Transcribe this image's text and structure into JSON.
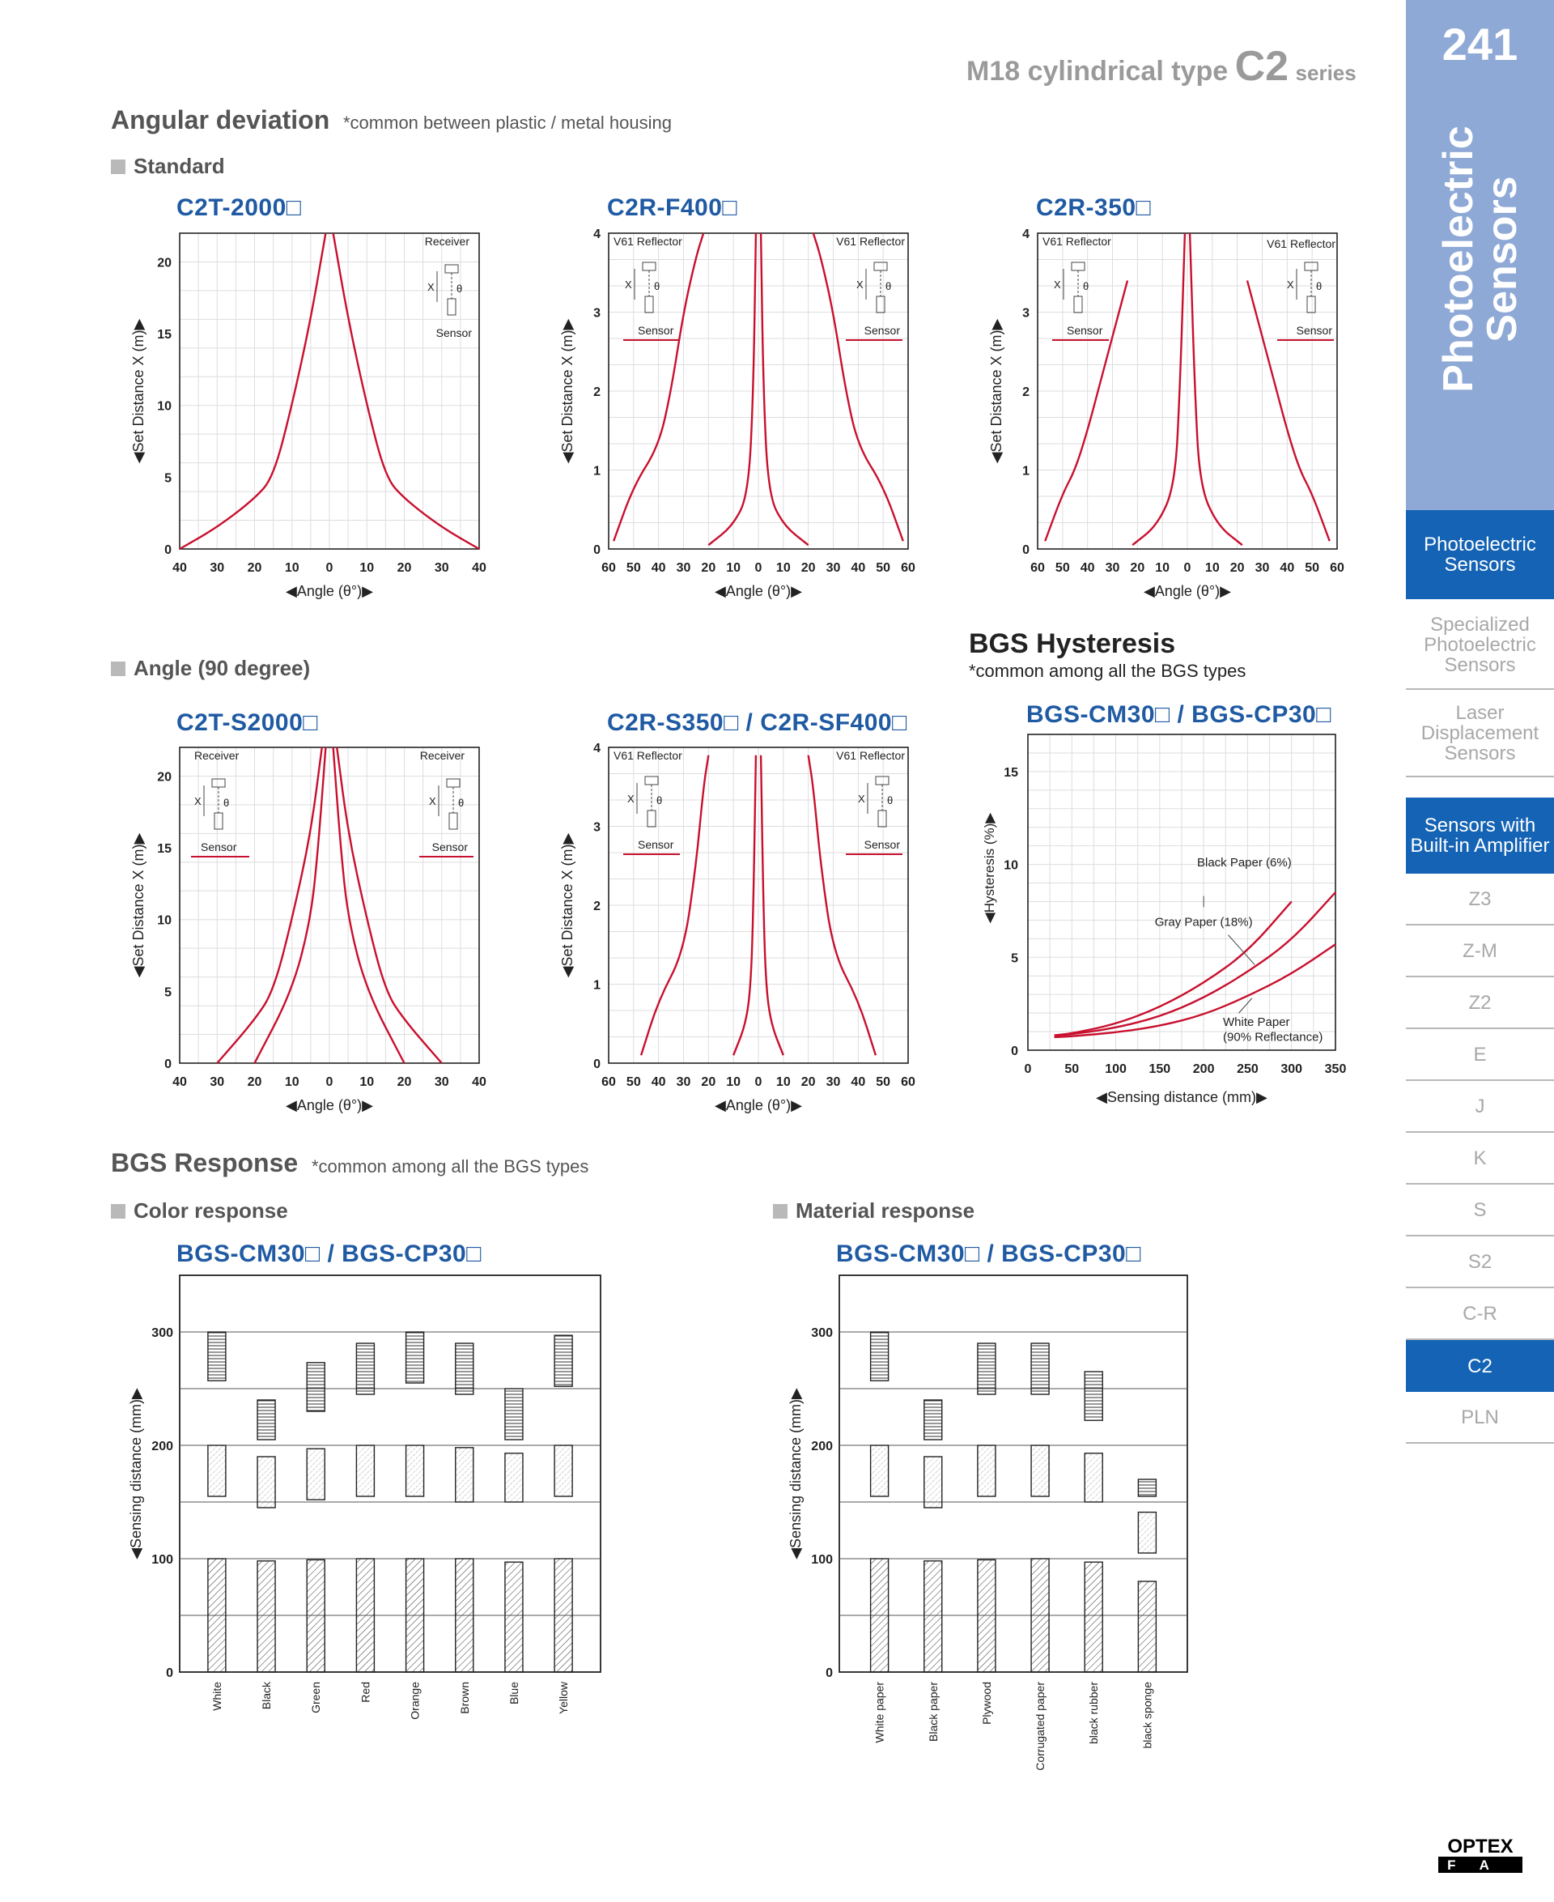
{
  "header": {
    "series_part1": "M18 cylindrical type",
    "series_part2": "C2",
    "series_part3": "series"
  },
  "angular": {
    "title": "Angular deviation",
    "note": "*common between plastic / metal housing",
    "standard_label": "Standard",
    "angle90_label": "Angle (90 degree)"
  },
  "charts": {
    "c2t2000": {
      "model": "C2T-2000□",
      "ylabel": "◀Set Distance X (m)▶",
      "xlabel": "◀Angle (θ°)▶",
      "yticks": [
        "0",
        "5",
        "10",
        "15",
        "20"
      ],
      "xticks": [
        "40",
        "30",
        "20",
        "10",
        "0",
        "10",
        "20",
        "30",
        "40"
      ],
      "inset_top": "Receiver",
      "inset_bottom": "Sensor"
    },
    "c2rf400": {
      "model": "C2R-F400□",
      "ylabel": "◀Set Distance X (m)▶",
      "xlabel": "◀Angle (θ°)▶",
      "yticks": [
        "0",
        "1",
        "2",
        "3",
        "4"
      ],
      "xticks": [
        "60",
        "50",
        "40",
        "30",
        "20",
        "10",
        "0",
        "10",
        "20",
        "30",
        "40",
        "50",
        "60"
      ],
      "reflector_left": "V61 Reflector",
      "reflector_right": "V61 Reflector",
      "sensor_left": "Sensor",
      "sensor_right": "Sensor"
    },
    "c2r350": {
      "model": "C2R-350□",
      "ylabel": "◀Set Distance X (m)▶",
      "xlabel": "◀Angle (θ°)▶",
      "yticks": [
        "0",
        "1",
        "2",
        "3",
        "4"
      ],
      "xticks": [
        "60",
        "50",
        "40",
        "30",
        "20",
        "10",
        "0",
        "10",
        "20",
        "30",
        "40",
        "50",
        "60"
      ],
      "reflector_left": "V61 Reflector",
      "reflector_right": "V61 Reflector",
      "sensor_left": "Sensor",
      "sensor_right": "Sensor"
    },
    "c2ts2000": {
      "model": "C2T-S2000□",
      "ylabel": "◀Set Distance X (m)▶",
      "xlabel": "◀Angle (θ°)▶",
      "yticks": [
        "0",
        "5",
        "10",
        "15",
        "20"
      ],
      "xticks": [
        "40",
        "30",
        "20",
        "10",
        "0",
        "10",
        "20",
        "30",
        "40"
      ],
      "receiver_left": "Receiver",
      "receiver_right": "Receiver",
      "sensor_left": "Sensor",
      "sensor_right": "Sensor"
    },
    "c2rs350": {
      "model": "C2R-S350□ / C2R-SF400□",
      "ylabel": "◀Set Distance X (m)▶",
      "xlabel": "◀Angle (θ°)▶",
      "yticks": [
        "0",
        "1",
        "2",
        "3",
        "4"
      ],
      "xticks": [
        "60",
        "50",
        "40",
        "30",
        "20",
        "10",
        "0",
        "10",
        "20",
        "30",
        "40",
        "50",
        "60"
      ],
      "reflector_left": "V61 Reflector",
      "reflector_right": "V61 Reflector",
      "sensor_left": "Sensor",
      "sensor_right": "Sensor"
    },
    "bgs_hyst": {
      "section_title": "BGS Hysteresis",
      "section_note": "*common among all the BGS types",
      "model": "BGS-CM30□ / BGS-CP30□",
      "ylabel": "◀Hysteresis (%)▶",
      "xlabel": "◀Sensing distance (mm)▶",
      "yticks": [
        "0",
        "5",
        "10",
        "15"
      ],
      "xticks": [
        "0",
        "50",
        "100",
        "150",
        "200",
        "250",
        "300",
        "350"
      ],
      "label_black": "Black Paper (6%)",
      "label_gray": "Gray Paper (18%)",
      "label_white1": "White Paper",
      "label_white2": "(90% Reflectance)"
    }
  },
  "response": {
    "title": "BGS Response",
    "note": "*common among all the BGS types",
    "color_label": "Color response",
    "material_label": "Material response",
    "color_model": "BGS-CM30□ / BGS-CP30□",
    "material_model": "BGS-CM30□ / BGS-CP30□",
    "ylabel": "◀Sensing distance (mm)▶",
    "yticks": [
      "0",
      "100",
      "200",
      "300"
    ]
  },
  "chart_data": [
    {
      "type": "line",
      "title": "C2T-2000□",
      "xlabel": "◀Angle (θ°)▶",
      "ylabel": "◀Set Distance X (m)▶",
      "xlim": [
        -40,
        40
      ],
      "ylim": [
        0,
        22
      ],
      "series": [
        {
          "x": [
            -40,
            -30,
            -20,
            -15,
            -10,
            -5,
            -1
          ],
          "y": [
            0,
            1.5,
            3.5,
            5,
            10,
            16,
            22
          ]
        },
        {
          "x": [
            40,
            30,
            20,
            15,
            10,
            5,
            1
          ],
          "y": [
            0,
            1.5,
            3.5,
            5,
            10,
            16,
            22
          ]
        }
      ]
    },
    {
      "type": "line",
      "title": "C2R-F400□",
      "xlabel": "◀Angle (θ°)▶",
      "ylabel": "◀Set Distance X (m)▶",
      "xlim": [
        -60,
        60
      ],
      "ylim": [
        0,
        4
      ],
      "series": [
        {
          "x": [
            -58,
            -50,
            -40,
            -35,
            -30,
            -25,
            -22
          ],
          "y": [
            0.1,
            0.8,
            1.3,
            2.0,
            3.0,
            3.7,
            4.0
          ]
        },
        {
          "x": [
            -20,
            -10,
            -4,
            -2,
            -1
          ],
          "y": [
            0.05,
            0.3,
            0.7,
            2.0,
            4.0
          ]
        },
        {
          "x": [
            20,
            10,
            4,
            2,
            1
          ],
          "y": [
            0.05,
            0.3,
            0.7,
            2.0,
            4.0
          ]
        },
        {
          "x": [
            58,
            50,
            40,
            35,
            30,
            25,
            22
          ],
          "y": [
            0.1,
            0.8,
            1.3,
            2.0,
            3.0,
            3.7,
            4.0
          ]
        }
      ]
    },
    {
      "type": "line",
      "title": "C2R-350□",
      "xlabel": "◀Angle (θ°)▶",
      "ylabel": "◀Set Distance X (m)▶",
      "xlim": [
        -60,
        60
      ],
      "ylim": [
        0,
        4
      ],
      "series": [
        {
          "x": [
            -57,
            -50,
            -45,
            -40,
            -35,
            -24
          ],
          "y": [
            0.1,
            0.7,
            1.0,
            1.5,
            2.1,
            3.4
          ]
        },
        {
          "x": [
            -22,
            -12,
            -5,
            -3,
            -1
          ],
          "y": [
            0.05,
            0.3,
            0.8,
            2.0,
            4.0
          ]
        },
        {
          "x": [
            22,
            12,
            5,
            3,
            1
          ],
          "y": [
            0.05,
            0.3,
            0.8,
            2.0,
            4.0
          ]
        },
        {
          "x": [
            57,
            50,
            45,
            40,
            35,
            24
          ],
          "y": [
            0.1,
            0.7,
            1.0,
            1.5,
            2.1,
            3.4
          ]
        }
      ]
    },
    {
      "type": "line",
      "title": "C2T-S2000□",
      "xlabel": "◀Angle (θ°)▶",
      "ylabel": "◀Set Distance X (m)▶",
      "xlim": [
        -40,
        40
      ],
      "ylim": [
        0,
        22
      ],
      "series": [
        {
          "x": [
            -30,
            -20,
            -15,
            -10,
            -5,
            -2
          ],
          "y": [
            0,
            3,
            5,
            10,
            16,
            22
          ]
        },
        {
          "x": [
            -20,
            -10,
            -5,
            -3,
            -1
          ],
          "y": [
            0,
            5,
            10,
            15,
            22
          ]
        },
        {
          "x": [
            20,
            10,
            5,
            3,
            1
          ],
          "y": [
            0,
            5,
            10,
            15,
            22
          ]
        },
        {
          "x": [
            30,
            20,
            15,
            10,
            5,
            2
          ],
          "y": [
            0,
            3,
            5,
            10,
            16,
            22
          ]
        }
      ]
    },
    {
      "type": "line",
      "title": "C2R-S350□ / C2R-SF400□",
      "xlabel": "◀Angle (θ°)▶",
      "ylabel": "◀Set Distance X (m)▶",
      "xlim": [
        -60,
        60
      ],
      "ylim": [
        0,
        4
      ],
      "series": [
        {
          "x": [
            -47,
            -40,
            -30,
            -25,
            -22,
            -20
          ],
          "y": [
            0.1,
            0.8,
            1.4,
            2.5,
            3.5,
            3.9
          ]
        },
        {
          "x": [
            -10,
            -5,
            -3,
            -2,
            -1
          ],
          "y": [
            0.1,
            0.5,
            1.0,
            2.0,
            3.9
          ]
        },
        {
          "x": [
            10,
            5,
            3,
            2,
            1
          ],
          "y": [
            0.1,
            0.5,
            1.0,
            2.0,
            3.9
          ]
        },
        {
          "x": [
            47,
            40,
            30,
            25,
            22,
            20
          ],
          "y": [
            0.1,
            0.8,
            1.4,
            2.5,
            3.5,
            3.9
          ]
        }
      ]
    },
    {
      "type": "line",
      "title": "BGS-CM30□ / BGS-CP30□",
      "xlabel": "◀Sensing distance (mm)▶",
      "ylabel": "◀Hysteresis (%)▶",
      "xlim": [
        0,
        350
      ],
      "ylim": [
        0,
        17
      ],
      "series": [
        {
          "name": "Black Paper (6%)",
          "x": [
            30,
            50,
            100,
            150,
            200,
            250,
            300
          ],
          "y": [
            0.8,
            0.9,
            1.4,
            2.3,
            3.6,
            5.3,
            8.0
          ]
        },
        {
          "name": "Gray Paper (18%)",
          "x": [
            30,
            50,
            100,
            150,
            200,
            250,
            300,
            350
          ],
          "y": [
            0.8,
            0.85,
            1.2,
            1.8,
            2.8,
            4.2,
            5.9,
            8.5
          ]
        },
        {
          "name": "White Paper (90% Reflectance)",
          "x": [
            30,
            50,
            100,
            150,
            200,
            250,
            300,
            350
          ],
          "y": [
            0.7,
            0.75,
            0.95,
            1.3,
            1.9,
            2.9,
            4.1,
            5.7
          ]
        }
      ]
    },
    {
      "type": "bar",
      "title": "BGS-CM30□ / BGS-CP30□",
      "ylabel": "◀Sensing distance (mm)▶",
      "ylim": [
        0,
        350
      ],
      "categories": [
        "White",
        "Black",
        "Green",
        "Red",
        "Orange",
        "Brown",
        "Blue",
        "Yellow"
      ],
      "series": [
        {
          "values": [
            [
              0,
              100
            ],
            [
              0,
              98
            ],
            [
              0,
              99
            ],
            [
              0,
              100
            ],
            [
              0,
              100
            ],
            [
              0,
              100
            ],
            [
              0,
              97
            ],
            [
              0,
              100
            ]
          ]
        },
        {
          "values": [
            [
              155,
              200
            ],
            [
              145,
              190
            ],
            [
              152,
              197
            ],
            [
              155,
              200
            ],
            [
              155,
              200
            ],
            [
              150,
              198
            ],
            [
              150,
              193
            ],
            [
              155,
              200
            ]
          ]
        },
        {
          "values": [
            [
              257,
              300
            ],
            [
              205,
              240
            ],
            [
              230,
              273
            ],
            [
              245,
              290
            ],
            [
              255,
              300
            ],
            [
              245,
              290
            ],
            [
              205,
              250
            ],
            [
              252,
              297
            ]
          ]
        }
      ]
    },
    {
      "type": "bar",
      "title": "BGS-CM30□ / BGS-CP30□",
      "ylabel": "◀Sensing distance (mm)▶",
      "ylim": [
        0,
        350
      ],
      "categories": [
        "White paper",
        "Black paper",
        "Plywood",
        "Corrugated paper",
        "black rubber",
        "black sponge"
      ],
      "series": [
        {
          "values": [
            [
              0,
              100
            ],
            [
              0,
              98
            ],
            [
              0,
              99
            ],
            [
              0,
              100
            ],
            [
              0,
              97
            ],
            [
              0,
              80
            ]
          ]
        },
        {
          "values": [
            [
              155,
              200
            ],
            [
              145,
              190
            ],
            [
              155,
              200
            ],
            [
              155,
              200
            ],
            [
              150,
              193
            ],
            [
              105,
              141
            ]
          ]
        },
        {
          "values": [
            [
              257,
              300
            ],
            [
              205,
              240
            ],
            [
              245,
              290
            ],
            [
              245,
              290
            ],
            [
              222,
              265
            ],
            [
              155,
              170
            ]
          ]
        }
      ]
    }
  ],
  "sidebar": {
    "page_number": "241",
    "vertical_line1": "Photoelectric",
    "vertical_line2": "Sensors",
    "items": [
      {
        "label": "Photoelectric Sensors",
        "active": true
      },
      {
        "label": "Specialized Photoelectric Sensors",
        "active": false
      },
      {
        "label": "Laser Displacement Sensors",
        "active": false
      },
      {
        "label": "Sensors with Built-in Amplifier",
        "active": true
      },
      {
        "label": "Z3",
        "active": false
      },
      {
        "label": "Z-M",
        "active": false
      },
      {
        "label": "Z2",
        "active": false
      },
      {
        "label": "E",
        "active": false
      },
      {
        "label": "J",
        "active": false
      },
      {
        "label": "K",
        "active": false
      },
      {
        "label": "S",
        "active": false
      },
      {
        "label": "S2",
        "active": false
      },
      {
        "label": "C-R",
        "active": false
      },
      {
        "label": "C2",
        "active": true
      },
      {
        "label": "PLN",
        "active": false
      }
    ]
  },
  "logo": {
    "line1": "OPTEX",
    "line2": "FA"
  },
  "colors": {
    "curve": "#c8102e",
    "model": "#1f5aa3",
    "sidebar_active": "#1563b5",
    "sidebar_top": "#8fa9d6"
  }
}
